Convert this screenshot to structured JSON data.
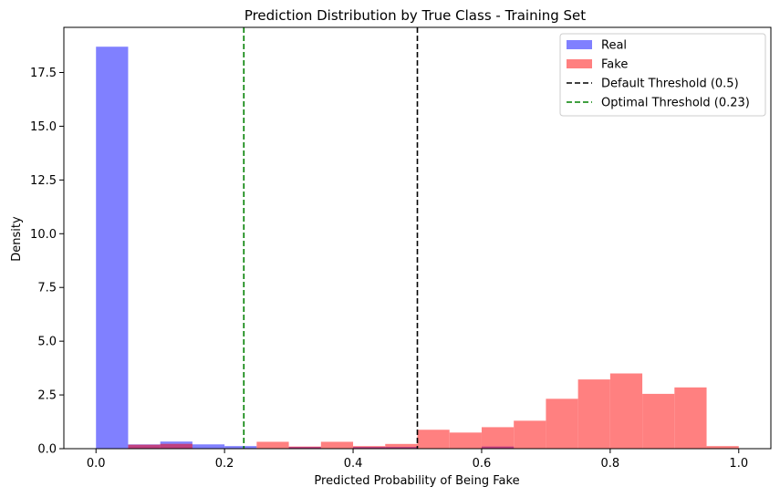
{
  "chart_data": {
    "type": "histogram",
    "title": "Prediction Distribution by True Class - Training Set",
    "xlabel": "Predicted Probability of Being Fake",
    "ylabel": "Density",
    "xlim": [
      -0.05,
      1.05
    ],
    "ylim": [
      0,
      19.6
    ],
    "xticks": [
      0.0,
      0.2,
      0.4,
      0.6,
      0.8,
      1.0
    ],
    "xtick_labels": [
      "0.0",
      "0.2",
      "0.4",
      "0.6",
      "0.8",
      "1.0"
    ],
    "yticks": [
      0.0,
      2.5,
      5.0,
      7.5,
      10.0,
      12.5,
      15.0,
      17.5
    ],
    "ytick_labels": [
      "0.0",
      "2.5",
      "5.0",
      "7.5",
      "10.0",
      "12.5",
      "15.0",
      "17.5"
    ],
    "bin_edges": [
      0.0,
      0.05,
      0.1,
      0.15,
      0.2,
      0.25,
      0.3,
      0.35,
      0.4,
      0.45,
      0.5,
      0.55,
      0.6,
      0.65,
      0.7,
      0.75,
      0.8,
      0.85,
      0.9,
      0.95,
      1.0
    ],
    "series": [
      {
        "name": "Real",
        "color": "#8080ff",
        "densities": [
          18.7,
          0.2,
          0.33,
          0.2,
          0.12,
          0.0,
          0.08,
          0.0,
          0.08,
          0.08,
          0.0,
          0.0,
          0.1,
          0.0,
          0.0,
          0.0,
          0.0,
          0.0,
          0.0,
          0.0
        ]
      },
      {
        "name": "Fake",
        "color": "#ff8080",
        "densities": [
          0.0,
          0.18,
          0.22,
          0.0,
          0.0,
          0.32,
          0.1,
          0.32,
          0.12,
          0.22,
          0.88,
          0.75,
          1.0,
          1.3,
          2.32,
          3.22,
          3.5,
          2.55,
          2.85,
          0.12
        ]
      }
    ],
    "overlap_color": "#bf4080",
    "vlines": [
      {
        "name": "Default Threshold (0.5)",
        "x": 0.5,
        "color": "#000000",
        "style": "dashed"
      },
      {
        "name": "Optimal Threshold (0.23)",
        "x": 0.23,
        "color": "#008000",
        "style": "dashed"
      }
    ],
    "legend_position": "top-right",
    "grid": false
  }
}
